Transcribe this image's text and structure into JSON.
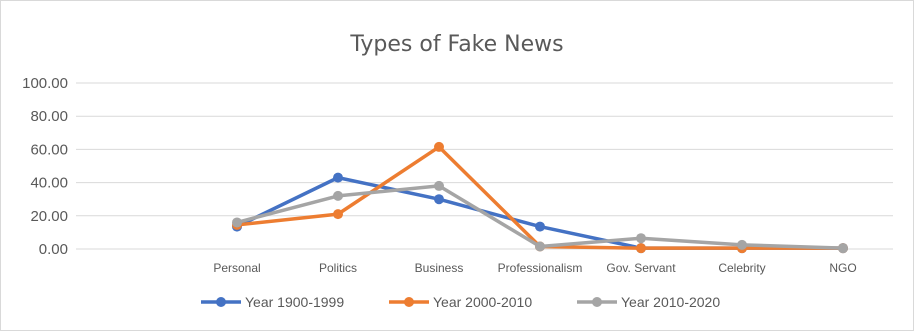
{
  "chart_data": {
    "type": "line",
    "title": "Types of Fake News",
    "xlabel": "",
    "ylabel": "",
    "categories": [
      "Personal",
      "Politics",
      "Business",
      "Professionalism",
      "Gov. Servant",
      "Celebrity",
      "NGO"
    ],
    "ylim": [
      0,
      100
    ],
    "yticks": [
      "0.00",
      "20.00",
      "40.00",
      "60.00",
      "80.00",
      "100.00"
    ],
    "grid": true,
    "legend_position": "bottom",
    "series": [
      {
        "name": "Year 1900-1999",
        "color": "#4472c4",
        "values": [
          13.5,
          43.0,
          30.0,
          13.5,
          0.5,
          0.5,
          0.5
        ]
      },
      {
        "name": "Year 2000-2010",
        "color": "#ed7d31",
        "values": [
          14.5,
          21.0,
          61.5,
          1.5,
          0.5,
          0.5,
          0.5
        ]
      },
      {
        "name": "Year 2010-2020",
        "color": "#a5a5a5",
        "values": [
          16.0,
          32.0,
          38.0,
          1.5,
          6.5,
          2.5,
          0.5
        ]
      }
    ]
  }
}
